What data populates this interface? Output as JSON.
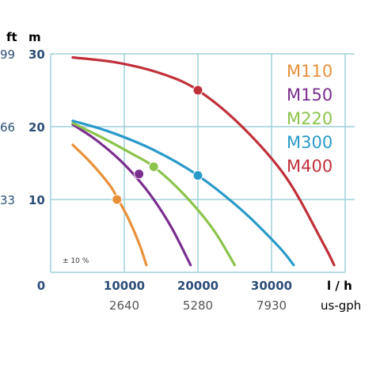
{
  "chart_data": {
    "type": "line",
    "x_unit": "l / h",
    "x_secondary_unit": "us-gph",
    "y_unit_left": "m",
    "y_unit_ft": "ft",
    "x_ticks": [
      0,
      10000,
      20000,
      30000
    ],
    "x_tick_labels": [
      "0",
      "10000",
      "20000",
      "30000"
    ],
    "x_secondary_labels": [
      "2640",
      "5280",
      "7930"
    ],
    "y_ticks": [
      10,
      20,
      30
    ],
    "y_tick_labels": [
      "10",
      "20",
      "30"
    ],
    "y_ft_labels": [
      "33",
      "66",
      "99"
    ],
    "xlim": [
      0,
      42000
    ],
    "ylim": [
      0,
      30
    ],
    "grid": true,
    "legend_position": "top-right",
    "tolerance_note": "± 10 %",
    "series": [
      {
        "name": "M110",
        "color": "#E8913A",
        "points": [
          [
            3000,
            17.5
          ],
          [
            5500,
            15.0
          ],
          [
            8000,
            12.0
          ],
          [
            9000,
            10.3
          ],
          [
            10500,
            7.5
          ],
          [
            12000,
            4.0
          ],
          [
            13000,
            1.0
          ]
        ],
        "marker": [
          9000,
          10.0
        ]
      },
      {
        "name": "M150",
        "color": "#7B2F8E",
        "points": [
          [
            3000,
            20.3
          ],
          [
            6000,
            18.3
          ],
          [
            9000,
            15.8
          ],
          [
            11500,
            13.2
          ],
          [
            14000,
            10.0
          ],
          [
            16500,
            6.0
          ],
          [
            19000,
            1.0
          ]
        ],
        "marker": [
          12000,
          13.5
        ]
      },
      {
        "name": "M220",
        "color": "#8CC34B",
        "points": [
          [
            3000,
            20.5
          ],
          [
            7000,
            18.5
          ],
          [
            11000,
            16.3
          ],
          [
            14000,
            14.5
          ],
          [
            18000,
            10.8
          ],
          [
            22000,
            6.0
          ],
          [
            25000,
            1.0
          ]
        ],
        "marker": [
          14000,
          14.5
        ]
      },
      {
        "name": "M300",
        "color": "#2A9AC9",
        "points": [
          [
            3000,
            20.8
          ],
          [
            8000,
            19.3
          ],
          [
            14000,
            16.8
          ],
          [
            20000,
            13.3
          ],
          [
            26000,
            8.5
          ],
          [
            31000,
            3.5
          ],
          [
            33000,
            1.0
          ]
        ],
        "marker": [
          20000,
          13.3
        ]
      },
      {
        "name": "M400",
        "color": "#C0303A",
        "points": [
          [
            3000,
            29.5
          ],
          [
            9000,
            28.8
          ],
          [
            15000,
            27.3
          ],
          [
            20000,
            25.0
          ],
          [
            26000,
            20.0
          ],
          [
            32000,
            13.0
          ],
          [
            37000,
            4.0
          ],
          [
            38500,
            1.0
          ]
        ],
        "marker": [
          20000,
          25.0
        ]
      }
    ]
  },
  "colors": {
    "grid": "#9FD1D8",
    "axis_text": "#2D4E78",
    "secondary_text": "#555555"
  }
}
